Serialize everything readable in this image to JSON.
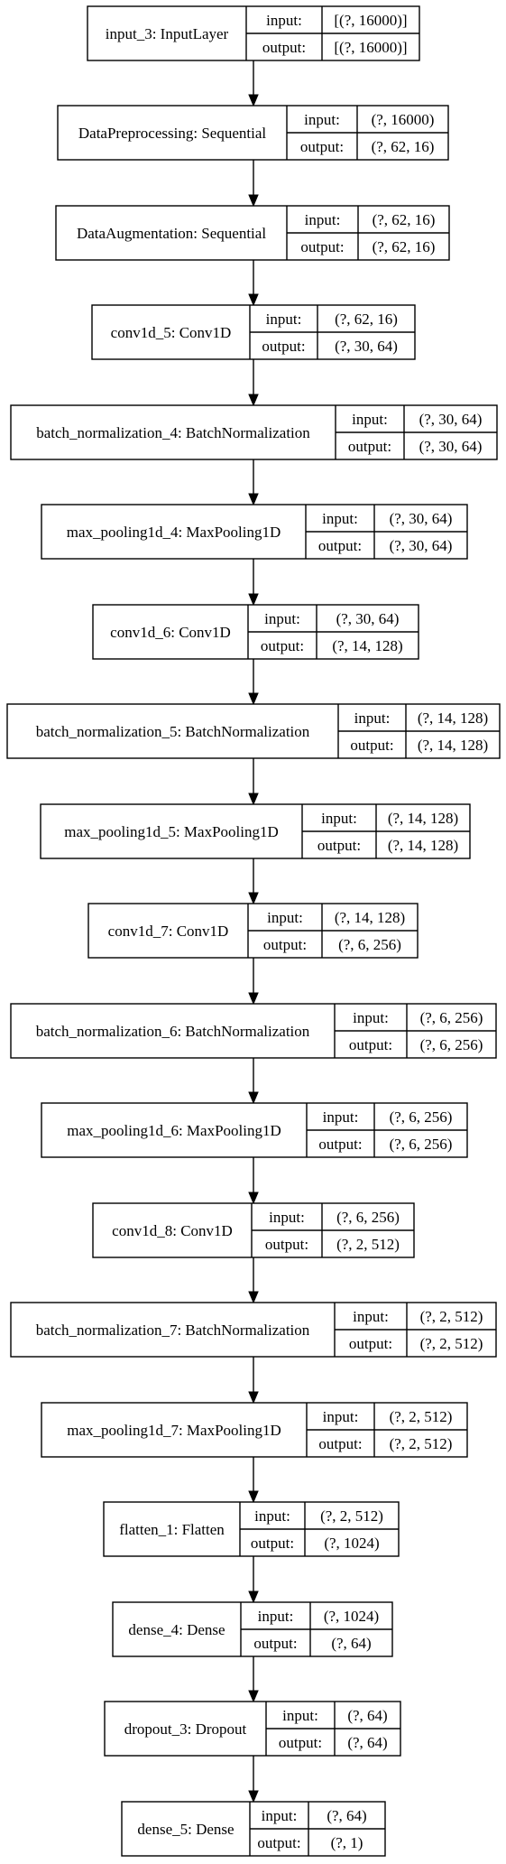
{
  "layers": [
    {
      "name": "input_3: InputLayer",
      "input_label": "input:",
      "input_shape": "[(?, 16000)]",
      "output_label": "output:",
      "output_shape": "[(?, 16000)]"
    },
    {
      "name": "DataPreprocessing: Sequential",
      "input_label": "input:",
      "input_shape": "(?, 16000)",
      "output_label": "output:",
      "output_shape": "(?, 62, 16)"
    },
    {
      "name": "DataAugmentation: Sequential",
      "input_label": "input:",
      "input_shape": "(?, 62, 16)",
      "output_label": "output:",
      "output_shape": "(?, 62, 16)"
    },
    {
      "name": "conv1d_5: Conv1D",
      "input_label": "input:",
      "input_shape": "(?, 62, 16)",
      "output_label": "output:",
      "output_shape": "(?, 30, 64)"
    },
    {
      "name": "batch_normalization_4: BatchNormalization",
      "input_label": "input:",
      "input_shape": "(?, 30, 64)",
      "output_label": "output:",
      "output_shape": "(?, 30, 64)"
    },
    {
      "name": "max_pooling1d_4: MaxPooling1D",
      "input_label": "input:",
      "input_shape": "(?, 30, 64)",
      "output_label": "output:",
      "output_shape": "(?, 30, 64)"
    },
    {
      "name": "conv1d_6: Conv1D",
      "input_label": "input:",
      "input_shape": "(?, 30, 64)",
      "output_label": "output:",
      "output_shape": "(?, 14, 128)"
    },
    {
      "name": "batch_normalization_5: BatchNormalization",
      "input_label": "input:",
      "input_shape": "(?, 14, 128)",
      "output_label": "output:",
      "output_shape": "(?, 14, 128)"
    },
    {
      "name": "max_pooling1d_5: MaxPooling1D",
      "input_label": "input:",
      "input_shape": "(?, 14, 128)",
      "output_label": "output:",
      "output_shape": "(?, 14, 128)"
    },
    {
      "name": "conv1d_7: Conv1D",
      "input_label": "input:",
      "input_shape": "(?, 14, 128)",
      "output_label": "output:",
      "output_shape": "(?, 6, 256)"
    },
    {
      "name": "batch_normalization_6: BatchNormalization",
      "input_label": "input:",
      "input_shape": "(?, 6, 256)",
      "output_label": "output:",
      "output_shape": "(?, 6, 256)"
    },
    {
      "name": "max_pooling1d_6: MaxPooling1D",
      "input_label": "input:",
      "input_shape": "(?, 6, 256)",
      "output_label": "output:",
      "output_shape": "(?, 6, 256)"
    },
    {
      "name": "conv1d_8: Conv1D",
      "input_label": "input:",
      "input_shape": "(?, 6, 256)",
      "output_label": "output:",
      "output_shape": "(?, 2, 512)"
    },
    {
      "name": "batch_normalization_7: BatchNormalization",
      "input_label": "input:",
      "input_shape": "(?, 2, 512)",
      "output_label": "output:",
      "output_shape": "(?, 2, 512)"
    },
    {
      "name": "max_pooling1d_7: MaxPooling1D",
      "input_label": "input:",
      "input_shape": "(?, 2, 512)",
      "output_label": "output:",
      "output_shape": "(?, 2, 512)"
    },
    {
      "name": "flatten_1: Flatten",
      "input_label": "input:",
      "input_shape": "(?, 2, 512)",
      "output_label": "output:",
      "output_shape": "(?, 1024)"
    },
    {
      "name": "dense_4: Dense",
      "input_label": "input:",
      "input_shape": "(?, 1024)",
      "output_label": "output:",
      "output_shape": "(?, 64)"
    },
    {
      "name": "dropout_3: Dropout",
      "input_label": "input:",
      "input_shape": "(?, 64)",
      "output_label": "output:",
      "output_shape": "(?, 64)"
    },
    {
      "name": "dense_5: Dense",
      "input_label": "input:",
      "input_shape": "(?, 64)",
      "output_label": "output:",
      "output_shape": "(?, 1)"
    }
  ]
}
